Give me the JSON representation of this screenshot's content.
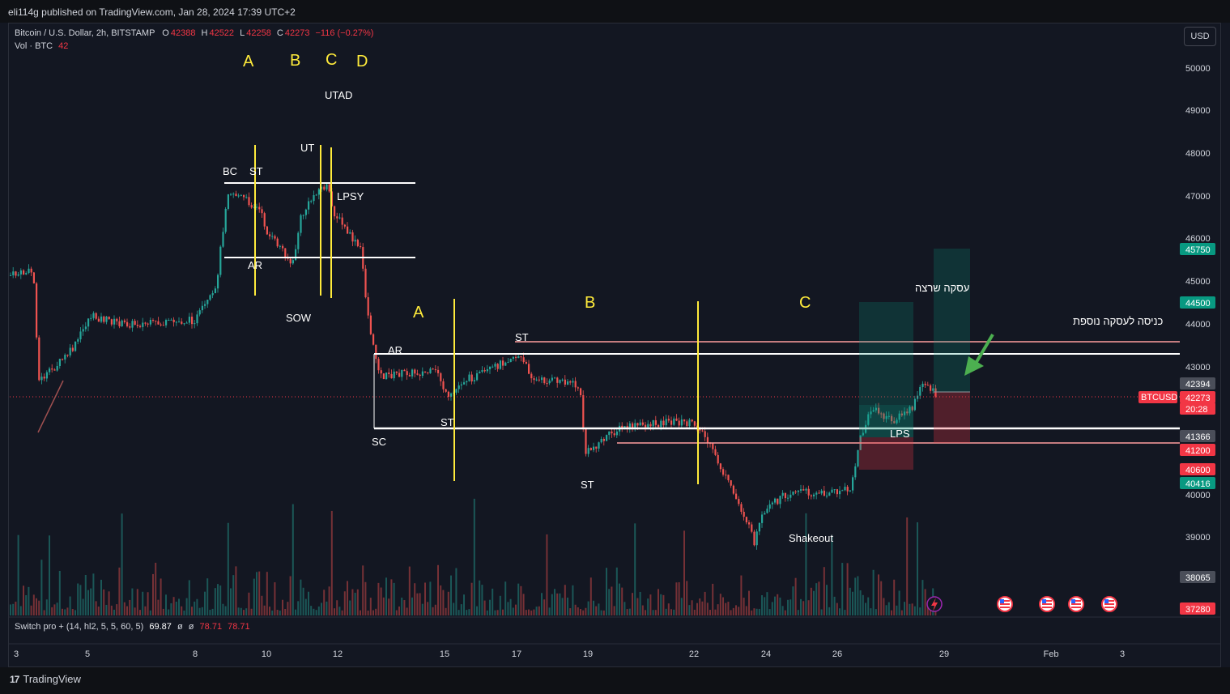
{
  "header": {
    "publisher": "eli114g published on TradingView.com, Jan 28, 2024 17:39 UTC+2"
  },
  "legend": {
    "symbol": "Bitcoin / U.S. Dollar, 2h, BITSTAMP",
    "o_label": "O",
    "o": "42388",
    "h_label": "H",
    "h": "42522",
    "l_label": "L",
    "l": "42258",
    "c_label": "C",
    "c": "42273",
    "change": "−116 (−0.27%)",
    "vol_label": "Vol · BTC",
    "vol": "42"
  },
  "currency_button": "USD",
  "oscillator": {
    "name": "Switch pro + (14, hl2, 5, 5, 60, 5)",
    "v1": "69.87",
    "sym1": "ø",
    "sym2": "ø",
    "v2": "78.71",
    "v3": "78.71"
  },
  "price_axis": [
    "50000",
    "49000",
    "48000",
    "47000",
    "46000",
    "45000",
    "44000",
    "43000",
    "40000",
    "39000"
  ],
  "price_tags": [
    {
      "text": "45750",
      "color": "#089981"
    },
    {
      "text": "44500",
      "color": "#089981"
    },
    {
      "text": "42394",
      "color": "#4a4e59"
    },
    {
      "text": "42273",
      "color": "#f23645"
    },
    {
      "text": "20:28",
      "color": "#f23645"
    },
    {
      "text": "41366",
      "color": "#4a4e59"
    },
    {
      "text": "41200",
      "color": "#f23645"
    },
    {
      "text": "40600",
      "color": "#f23645"
    },
    {
      "text": "40416",
      "color": "#089981"
    },
    {
      "text": "38065",
      "color": "#4a4e59"
    },
    {
      "text": "37280",
      "color": "#f23645"
    }
  ],
  "symbol_tag": "BTCUSD",
  "time_axis": [
    "3",
    "5",
    "8",
    "10",
    "12",
    "15",
    "17",
    "19",
    "22",
    "24",
    "26",
    "29",
    "Feb",
    "3"
  ],
  "annotations": {
    "phases_top": [
      "A",
      "B",
      "C",
      "D"
    ],
    "phases_mid": [
      "A",
      "B",
      "C"
    ],
    "labels": [
      "UTAD",
      "UT",
      "BC",
      "ST",
      "LPSY",
      "AR",
      "SOW",
      "AR",
      "ST",
      "ST",
      "SC",
      "ST",
      "LPS",
      "Shakeout"
    ],
    "hebrew_1": "עסקה שרצה",
    "hebrew_2": "כניסה לעסקה נוספת"
  },
  "footer": {
    "brand": "TradingView"
  },
  "colors": {
    "bg": "#131722",
    "up": "#26a69a",
    "down": "#ef5350",
    "phase": "#ffeb3b",
    "level": "#ffffff",
    "entry_arrow": "#4caf50"
  }
}
